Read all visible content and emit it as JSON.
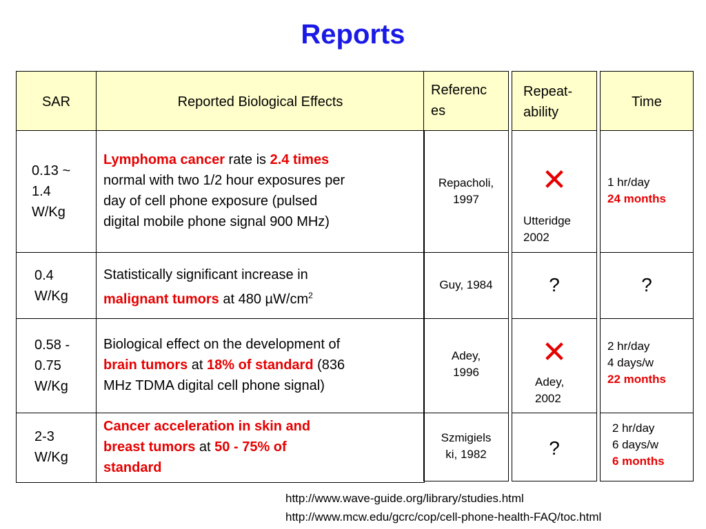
{
  "title": "Reports",
  "headers": {
    "sar": "SAR",
    "effects": "Reported Biological Effects",
    "references_1": "Referenc",
    "references_2": "es",
    "repeat_1": "Repeat-",
    "repeat_2": "ability",
    "time": "Time"
  },
  "rows": [
    {
      "sar": [
        "0.13 ~",
        "1.4",
        "W/Kg"
      ],
      "effect": {
        "l1a": "Lymphoma cancer",
        "l1b": " rate is ",
        "l1c": "2.4 times",
        "l2": "normal with two 1/2 hour exposures per",
        "l3": "day of cell phone exposure (pulsed",
        "l4": "digital mobile phone signal 900 MHz)"
      },
      "reference": [
        "Repacholi,",
        "1997"
      ],
      "repeat": {
        "mark": "✕",
        "text": [
          "Utteridge",
          "2002"
        ]
      },
      "time": [
        "1 hr/day",
        "24 months"
      ]
    },
    {
      "sar": [
        "0.4",
        "W/Kg"
      ],
      "effect": {
        "l1": "Statistically significant increase in",
        "l2a": "malignant tumors",
        "l2b": " at 480 µW/cm",
        "l2sup": "2"
      },
      "reference": [
        "Guy, 1984"
      ],
      "repeat": {
        "mark": "?"
      },
      "time": [
        "?"
      ]
    },
    {
      "sar": [
        "0.58 -",
        "0.75",
        "W/Kg"
      ],
      "effect": {
        "l1": "Biological effect on the development of",
        "l2a": "brain tumors",
        "l2b": " at ",
        "l2c": "18% of standard",
        "l2d": " (836",
        "l3": "MHz TDMA digital cell phone signal)"
      },
      "reference": [
        "Adey,",
        "1996"
      ],
      "repeat": {
        "mark": "✕",
        "text": [
          "Adey,",
          "2002"
        ]
      },
      "time": [
        "2 hr/day",
        "4 days/w",
        "22 months"
      ]
    },
    {
      "sar": [
        "2-3",
        "W/Kg"
      ],
      "effect": {
        "l1": "Cancer acceleration in skin and",
        "l2a": "breast tumors",
        "l2b": " at ",
        "l2c": "50 - 75% of",
        "l3": "standard"
      },
      "reference": [
        "Szmigiels",
        "ki, 1982"
      ],
      "repeat": {
        "mark": "?"
      },
      "time": [
        "2 hr/day",
        "6 days/w",
        "6 months"
      ]
    }
  ],
  "links": [
    "http://www.wave-guide.org/library/studies.html",
    "http://www.mcw.edu/gcrc/cop/cell-phone-health-FAQ/toc.html"
  ],
  "colors": {
    "title": "#1a1ae6",
    "highlight": "#e60000",
    "header_bg": "#ffffcc"
  }
}
